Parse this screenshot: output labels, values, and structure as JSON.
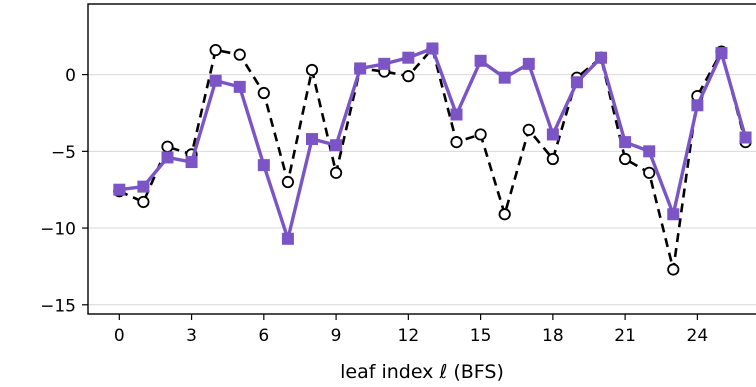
{
  "chart_data": {
    "type": "line",
    "title": "",
    "xlabel": "leaf index ℓ (BFS)",
    "ylabel": "",
    "xlim": [
      -1.3,
      26.6
    ],
    "ylim": [
      -15.6,
      4.6
    ],
    "xticks": [
      0,
      3,
      6,
      9,
      12,
      15,
      18,
      21,
      24
    ],
    "xtick_labels": [
      "0",
      "3",
      "6",
      "9",
      "12",
      "15",
      "18",
      "21",
      "24"
    ],
    "yticks": [
      0,
      -5,
      -10,
      -15
    ],
    "ytick_labels": [
      "0",
      "−5",
      "−10",
      "−15"
    ],
    "grid": "horizontal",
    "legend": "none",
    "x": [
      0,
      1,
      2,
      3,
      4,
      5,
      6,
      7,
      8,
      9,
      10,
      11,
      12,
      13,
      14,
      15,
      16,
      17,
      18,
      19,
      20,
      21,
      22,
      23,
      24,
      25,
      26
    ],
    "series": [
      {
        "style": "dashed-black-open-circle",
        "color": "#000000",
        "values": [
          -7.6,
          -8.3,
          -4.7,
          -5.2,
          1.6,
          1.3,
          -1.2,
          -7.0,
          0.3,
          -6.4,
          0.4,
          0.2,
          -0.1,
          1.7,
          -4.4,
          -3.9,
          -9.1,
          -3.6,
          -5.5,
          -0.2,
          1.1,
          -5.5,
          -6.4,
          -12.7,
          -1.4,
          1.5,
          -4.4
        ]
      },
      {
        "style": "solid-purple-square",
        "color": "#7b55c6",
        "values": [
          -7.5,
          -7.3,
          -5.4,
          -5.7,
          -0.4,
          -0.8,
          -5.9,
          -10.7,
          -4.2,
          -4.6,
          0.4,
          0.7,
          1.1,
          1.7,
          -2.6,
          0.9,
          -0.2,
          0.7,
          -3.9,
          -0.5,
          1.1,
          -4.4,
          -5.0,
          -9.1,
          -2.0,
          1.4,
          -4.1
        ]
      }
    ]
  }
}
